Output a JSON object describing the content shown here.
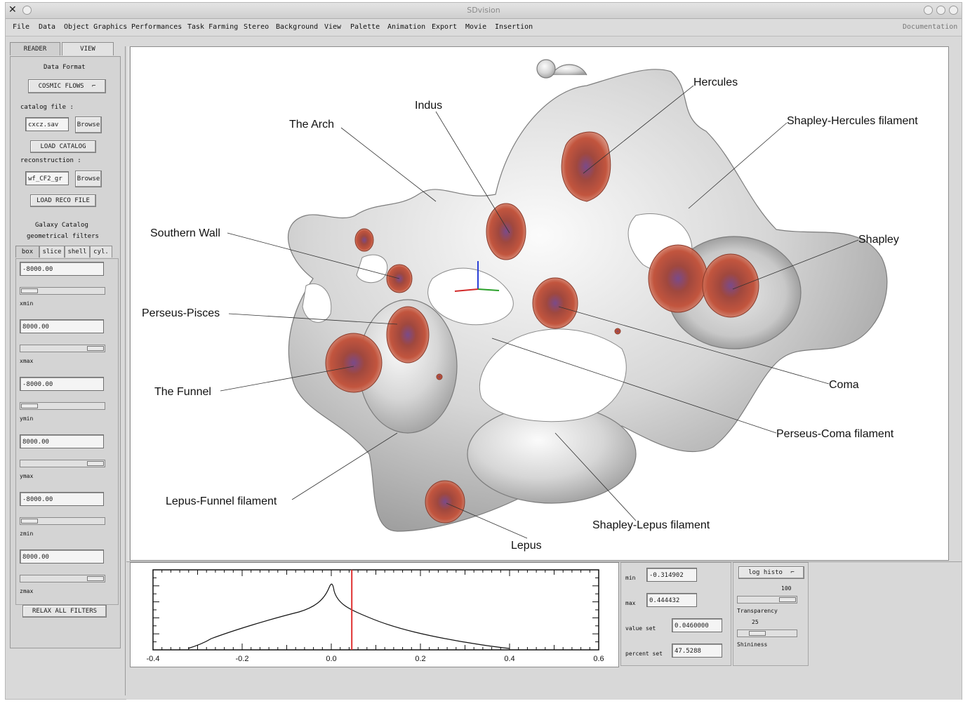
{
  "window": {
    "title": "SDvision"
  },
  "menu": {
    "items": [
      "File",
      "Data",
      "Object Graphics",
      "Performances",
      "Task Farming",
      "Stereo",
      "Background",
      "View",
      "Palette",
      "Animation",
      "Export",
      "Movie",
      "Insertion"
    ],
    "documentation": "Documentation"
  },
  "left_panel": {
    "tabs": [
      "READER",
      "VIEW"
    ],
    "data_format_label": "Data Format",
    "data_format_value": "COSMIC FLOWS",
    "catalog_file_label": "catalog file :",
    "catalog_file_value": "cxcz.sav",
    "browse_label": "Browse",
    "load_catalog_label": "LOAD CATALOG",
    "reconstruction_label": "reconstruction :",
    "reconstruction_value": "wf_CF2_gr",
    "load_reco_label": "LOAD RECO FILE",
    "galaxy_catalog_label": "Galaxy Catalog",
    "geometrical_filters_label": "geometrical filters",
    "filter_tabs": [
      "box",
      "slice",
      "shell",
      "cyl."
    ],
    "filters": [
      {
        "value": "-8000.00",
        "label": "xmin",
        "level": 0.0
      },
      {
        "value": "8000.00",
        "label": "xmax",
        "level": 1.0
      },
      {
        "value": "-8000.00",
        "label": "ymin",
        "level": 0.0
      },
      {
        "value": "8000.00",
        "label": "ymax",
        "level": 1.0
      },
      {
        "value": "-8000.00",
        "label": "zmin",
        "level": 0.0
      },
      {
        "value": "8000.00",
        "label": "zmax",
        "level": 1.0
      }
    ],
    "relax_label": "RELAX ALL FILTERS"
  },
  "view_labels": {
    "hercules": "Hercules",
    "shapley_hercules": "Shapley-Hercules filament",
    "indus": "Indus",
    "the_arch": "The Arch",
    "southern_wall": "Southern Wall",
    "shapley": "Shapley",
    "perseus_pisces": "Perseus-Pisces",
    "the_funnel": "The Funnel",
    "coma": "Coma",
    "perseus_coma": "Perseus-Coma filament",
    "lepus_funnel": "Lepus-Funnel filament",
    "shapley_lepus": "Shapley-Lepus filament",
    "lepus": "Lepus"
  },
  "histogram": {
    "x_ticks": [
      "-0.4",
      "-0.2",
      "0.0",
      "0.2",
      "0.4",
      "0.6"
    ],
    "xlim": [
      -0.4,
      0.6
    ],
    "marker_value": 0.046
  },
  "controls": {
    "min_label": "min",
    "min_value": "-0.314902",
    "max_label": "max",
    "max_value": "0.444432",
    "value_set_label": "value set",
    "value_set_value": "0.0460000",
    "percent_set_label": "percent set",
    "percent_set_value": "47.5288",
    "histo_mode": "log histo",
    "transparency_value": "100",
    "transparency_label": "Transparency",
    "transparency_level": 1.0,
    "shininess_value": "25",
    "shininess_label": "Shininess",
    "shininess_level": 0.25
  },
  "colors": {
    "marker": "#e03030",
    "halo": "#c0402a"
  }
}
